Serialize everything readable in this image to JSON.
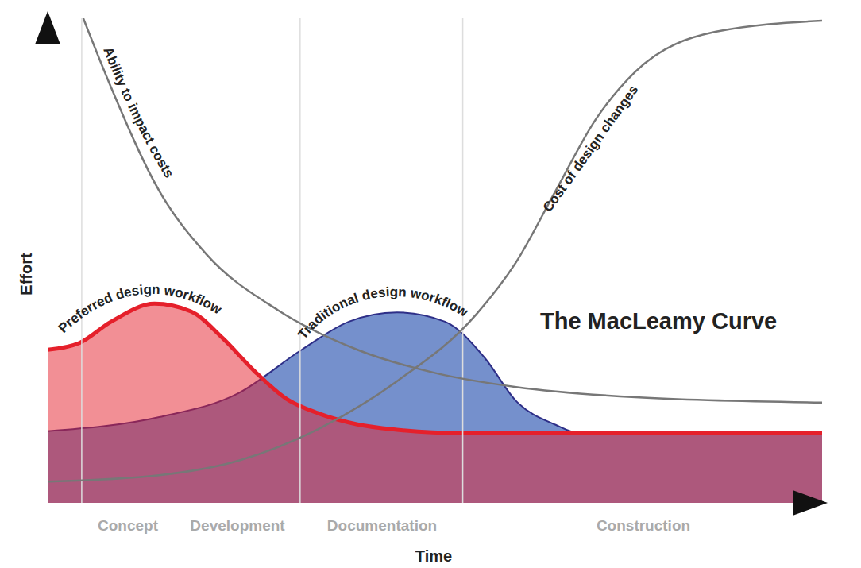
{
  "chart_data": {
    "type": "area",
    "title": "The MacLeamy Curve",
    "x_label": "Time",
    "y_label": "Effort",
    "phases": [
      "Concept",
      "Development",
      "Documentation",
      "Construction"
    ],
    "phase_boundaries": [
      4.4,
      32.6,
      53.6
    ],
    "xlim": [
      0,
      100
    ],
    "ylim": [
      0,
      100
    ],
    "tick_labels": false,
    "grid": false,
    "series": [
      {
        "name": "Traditional design workflow",
        "type": "area",
        "color": "#7590cc",
        "x": [
          0,
          14.4,
          24.6,
          32.8,
          38.9,
          45.1,
          51.3,
          56.4,
          60.5,
          65.6,
          68.7,
          75,
          100
        ],
        "values": [
          14.8,
          17.7,
          22.6,
          31.6,
          37.4,
          39.3,
          37.4,
          30,
          21,
          16.1,
          14.4,
          14.4,
          14.4
        ]
      },
      {
        "name": "Preferred design workflow",
        "type": "area",
        "color": "#e5202b",
        "x": [
          0,
          4.1,
          8.2,
          13.8,
          18.5,
          22.6,
          26.7,
          30.8,
          34.9,
          40,
          45.1,
          53.3,
          70,
          100
        ],
        "values": [
          31.6,
          33,
          37.4,
          41.1,
          39.5,
          34,
          27.2,
          21.5,
          18.5,
          16.2,
          15.1,
          14.4,
          14.4,
          14.4
        ]
      },
      {
        "name": "Ability to impact costs",
        "type": "line",
        "color": "#777777",
        "x": [
          4.6,
          8.2,
          14.4,
          20.5,
          29.7,
          40,
          50.3,
          60.5,
          75.9,
          100
        ],
        "values": [
          100,
          85.7,
          64.4,
          51.3,
          39.8,
          31.6,
          26.7,
          23.9,
          21.8,
          20.7
        ]
      },
      {
        "name": "Cost of design changes",
        "type": "line",
        "color": "#777777",
        "x": [
          0,
          14.4,
          24.6,
          34.9,
          45.1,
          55.4,
          60.5,
          65.6,
          70.8,
          75.9,
          86.2,
          100
        ],
        "values": [
          4.4,
          5.7,
          8.7,
          15.2,
          25.1,
          39,
          49.7,
          64.4,
          79.2,
          89,
          97.2,
          99.5
        ]
      }
    ]
  }
}
